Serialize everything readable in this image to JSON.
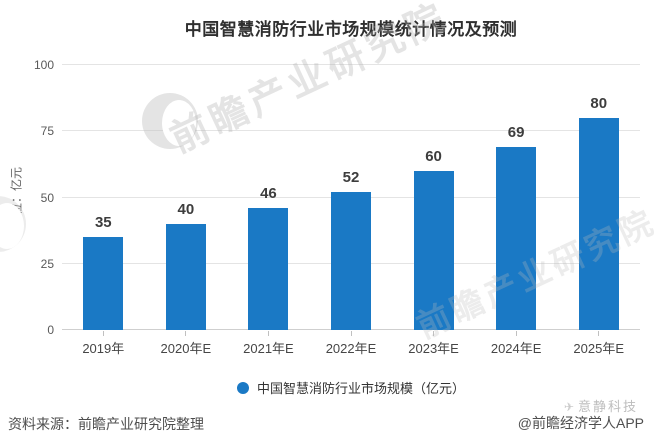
{
  "chart_data": {
    "type": "bar",
    "title": "中国智慧消防行业市场规模统计情况及预测",
    "categories": [
      "2019年",
      "2020年E",
      "2021年E",
      "2022年E",
      "2023年E",
      "2024年E",
      "2025年E"
    ],
    "values": [
      35,
      40,
      46,
      52,
      60,
      69,
      80
    ],
    "xlabel": "",
    "ylabel": "单位：亿元",
    "ylim": [
      0,
      100
    ],
    "yticks": [
      0,
      25,
      50,
      75,
      100
    ],
    "grid": true,
    "legend": [
      "中国智慧消防行业市场规模（亿元）"
    ],
    "legend_position": "bottom",
    "bar_color": "#1a79c5",
    "value_label_color": "#3d3d3d"
  },
  "legend": {
    "label": "中国智慧消防行业市场规模（亿元）",
    "marker_color": "#1a79c5"
  },
  "footer": {
    "source": "资料来源：前瞻产业研究院整理",
    "credit": "@前瞻经济学人APP"
  },
  "watermarks": {
    "center_text": "前瞻产业研究院",
    "corner_text": "意静科技"
  },
  "icons": {
    "corner_watermark_glyph": "✈"
  }
}
